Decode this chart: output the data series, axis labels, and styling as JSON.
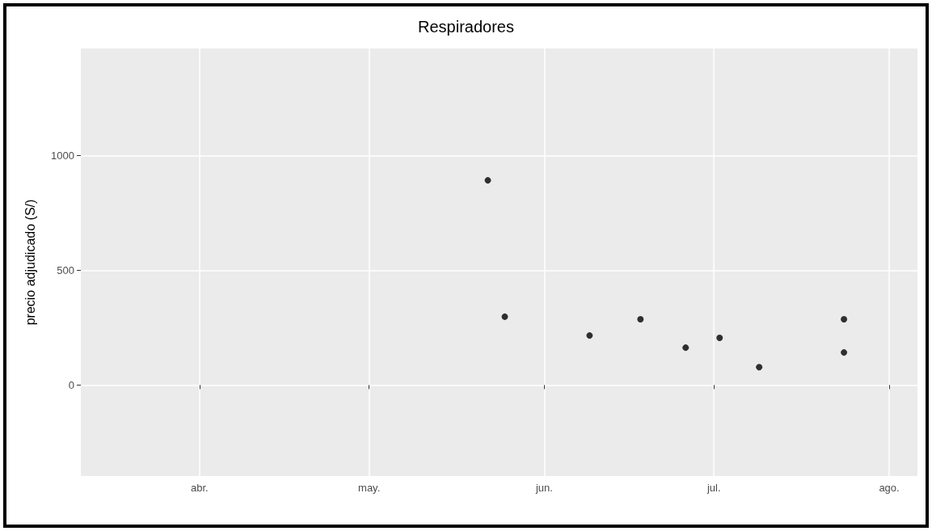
{
  "chart_data": {
    "type": "scatter",
    "title": "Respiradores",
    "ylabel": "precio adjudicado (S/)",
    "x": [
      "--05-22",
      "--05-25",
      "--06-09",
      "--06-18",
      "--06-26",
      "--07-02",
      "--07-09",
      "--07-24",
      "--07-24"
    ],
    "values": [
      893,
      298,
      216,
      287,
      163,
      206,
      78,
      287,
      142
    ],
    "color": "#000000",
    "marker": "circle",
    "xlim": [
      "--03-11",
      "--08-06"
    ],
    "xticks": [
      {
        "value": "--04-01",
        "label": "abr."
      },
      {
        "value": "--05-01",
        "label": "may."
      },
      {
        "value": "--06-01",
        "label": "jun."
      },
      {
        "value": "--07-01",
        "label": "jul."
      },
      {
        "value": "--08-01",
        "label": "ago."
      }
    ],
    "ylim": [
      -397,
      1468
    ],
    "yticks": [
      0,
      500,
      1000
    ],
    "grid": true
  }
}
